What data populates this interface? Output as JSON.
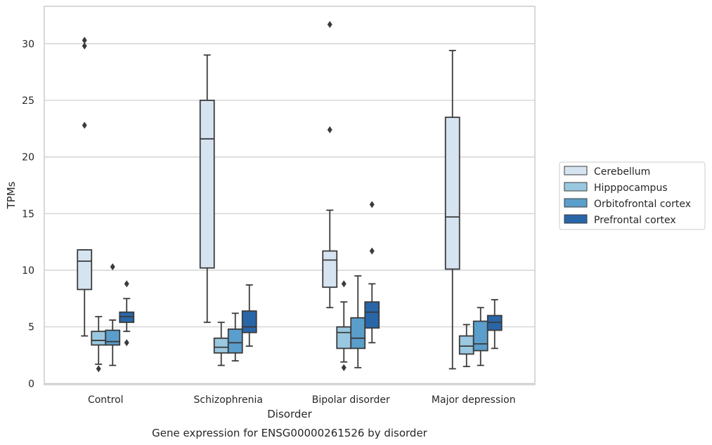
{
  "caption": "Gene expression for ENSG00000261526 by disorder",
  "chart_data": {
    "type": "boxplot",
    "xlabel": "Disorder",
    "ylabel": "TPMs",
    "ylim": [
      -0.1,
      33.3
    ],
    "yticks": [
      0,
      5,
      10,
      15,
      20,
      25,
      30
    ],
    "grid": "horizontal",
    "legend_placement": "right",
    "categories": [
      "Control",
      "Schizophrenia",
      "Bipolar disorder",
      "Major depression"
    ],
    "series": [
      {
        "name": "Cerebellum",
        "color": "#d6e4f2",
        "boxes": [
          {
            "whisker_low": 4.2,
            "q1": 8.3,
            "median": 10.8,
            "q3": 11.8,
            "whisker_high": 11.8,
            "outliers": [
              22.8,
              29.8,
              30.3
            ]
          },
          {
            "whisker_low": 5.4,
            "q1": 10.2,
            "median": 21.6,
            "q3": 25.0,
            "whisker_high": 29.0,
            "outliers": []
          },
          {
            "whisker_low": 6.7,
            "q1": 8.5,
            "median": 10.9,
            "q3": 11.7,
            "whisker_high": 15.3,
            "outliers": [
              22.4,
              31.7
            ]
          },
          {
            "whisker_low": 1.3,
            "q1": 10.1,
            "median": 14.7,
            "q3": 23.5,
            "whisker_high": 29.4,
            "outliers": []
          }
        ]
      },
      {
        "name": "Hipppocampus",
        "color": "#9ac8e0",
        "boxes": [
          {
            "whisker_low": 1.7,
            "q1": 3.4,
            "median": 3.8,
            "q3": 4.6,
            "whisker_high": 5.9,
            "outliers": [
              1.3
            ]
          },
          {
            "whisker_low": 1.6,
            "q1": 2.7,
            "median": 3.2,
            "q3": 4.0,
            "whisker_high": 5.4,
            "outliers": []
          },
          {
            "whisker_low": 1.9,
            "q1": 3.1,
            "median": 4.5,
            "q3": 5.0,
            "whisker_high": 7.2,
            "outliers": [
              1.4,
              8.8
            ]
          },
          {
            "whisker_low": 1.5,
            "q1": 2.6,
            "median": 3.3,
            "q3": 4.2,
            "whisker_high": 5.2,
            "outliers": []
          }
        ]
      },
      {
        "name": "Orbitofrontal cortex",
        "color": "#5a9ecc",
        "boxes": [
          {
            "whisker_low": 1.6,
            "q1": 3.4,
            "median": 3.7,
            "q3": 4.7,
            "whisker_high": 5.6,
            "outliers": [
              10.3
            ]
          },
          {
            "whisker_low": 2.0,
            "q1": 2.7,
            "median": 3.6,
            "q3": 4.8,
            "whisker_high": 6.2,
            "outliers": []
          },
          {
            "whisker_low": 1.4,
            "q1": 3.1,
            "median": 4.0,
            "q3": 5.8,
            "whisker_high": 9.5,
            "outliers": []
          },
          {
            "whisker_low": 1.6,
            "q1": 2.9,
            "median": 3.5,
            "q3": 5.5,
            "whisker_high": 6.7,
            "outliers": []
          }
        ]
      },
      {
        "name": "Prefrontal cortex",
        "color": "#2866a8",
        "boxes": [
          {
            "whisker_low": 4.6,
            "q1": 5.4,
            "median": 5.9,
            "q3": 6.3,
            "whisker_high": 7.5,
            "outliers": [
              3.6,
              8.8
            ]
          },
          {
            "whisker_low": 3.3,
            "q1": 4.5,
            "median": 5.0,
            "q3": 6.4,
            "whisker_high": 8.7,
            "outliers": []
          },
          {
            "whisker_low": 3.6,
            "q1": 4.9,
            "median": 6.3,
            "q3": 7.2,
            "whisker_high": 8.8,
            "outliers": [
              11.7,
              15.8
            ]
          },
          {
            "whisker_low": 3.1,
            "q1": 4.7,
            "median": 5.4,
            "q3": 6.0,
            "whisker_high": 7.4,
            "outliers": []
          }
        ]
      }
    ]
  }
}
